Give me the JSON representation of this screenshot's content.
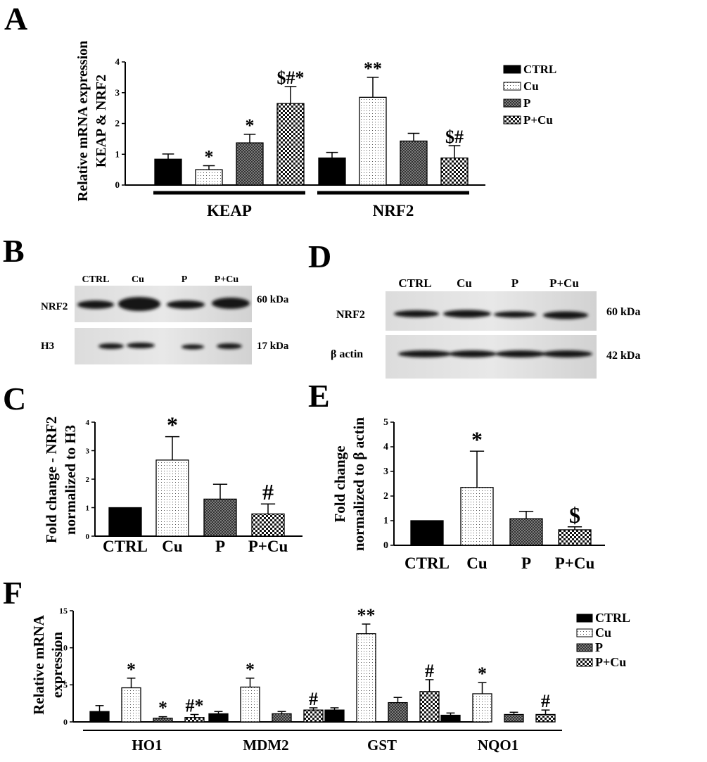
{
  "panels": {
    "A": {
      "label": "A",
      "chart_data": {
        "type": "bar",
        "groups": [
          "KEAP",
          "NRF2"
        ],
        "series": [
          {
            "name": "CTRL",
            "values": [
              0.84,
              0.88
            ],
            "errors": [
              0.17,
              0.18
            ]
          },
          {
            "name": "Cu",
            "values": [
              0.5,
              2.85
            ],
            "errors": [
              0.13,
              0.65
            ]
          },
          {
            "name": "P",
            "values": [
              1.37,
              1.43
            ],
            "errors": [
              0.28,
              0.25
            ]
          },
          {
            "name": "P+Cu",
            "values": [
              2.65,
              0.88
            ],
            "errors": [
              0.55,
              0.4
            ]
          }
        ],
        "annotations": [
          [
            "",
            "*",
            "*",
            "$#*"
          ],
          [
            "",
            "**",
            "",
            "$#"
          ]
        ],
        "ylabel": [
          "Relative mRNA expression",
          "KEAP & NRF2"
        ],
        "ylim": [
          0,
          4
        ],
        "yticks": [
          "0",
          "1",
          "2",
          "3",
          "4"
        ],
        "legend": [
          "CTRL",
          "Cu",
          "P",
          "P+Cu"
        ],
        "legend_position": "right"
      }
    },
    "B": {
      "label": "B",
      "lanes": [
        "CTRL",
        "Cu",
        "P",
        "P+Cu"
      ],
      "rows": [
        {
          "protein": "NRF2",
          "size": "60 kDa"
        },
        {
          "protein": "H3",
          "size": "17 kDa"
        }
      ]
    },
    "C": {
      "label": "C",
      "chart_data": {
        "type": "bar",
        "categories": [
          "CTRL",
          "Cu",
          "P",
          "P+Cu"
        ],
        "values": [
          1.0,
          2.67,
          1.3,
          0.78
        ],
        "errors": [
          0,
          0.82,
          0.52,
          0.35
        ],
        "annotations": [
          "",
          "*",
          "",
          "#"
        ],
        "ylabel": [
          "Fold change - NRF2",
          "normalized to H3"
        ],
        "ylim": [
          0,
          4
        ],
        "yticks": [
          "0",
          "1",
          "2",
          "3",
          "4"
        ]
      }
    },
    "D": {
      "label": "D",
      "lanes": [
        "CTRL",
        "Cu",
        "P",
        "P+Cu"
      ],
      "rows": [
        {
          "protein": "NRF2",
          "size": "60 kDa"
        },
        {
          "protein": "β actin",
          "size": "42 kDa"
        }
      ]
    },
    "E": {
      "label": "E",
      "chart_data": {
        "type": "bar",
        "categories": [
          "CTRL",
          "Cu",
          "P",
          "P+Cu"
        ],
        "values": [
          1.0,
          2.35,
          1.08,
          0.63
        ],
        "errors": [
          0,
          1.47,
          0.3,
          0.12
        ],
        "annotations": [
          "",
          "*",
          "",
          "$"
        ],
        "ylabel": [
          "Fold change",
          "normalized to β actin"
        ],
        "ylim": [
          0,
          5
        ],
        "yticks": [
          "0",
          "1",
          "2",
          "3",
          "4",
          "5"
        ]
      }
    },
    "F": {
      "label": "F",
      "chart_data": {
        "type": "bar",
        "groups": [
          "HO1",
          "MDM2",
          "GST",
          "NQO1"
        ],
        "series": [
          {
            "name": "CTRL",
            "values": [
              1.4,
              1.1,
              1.6,
              0.9
            ],
            "errors": [
              0.8,
              0.3,
              0.3,
              0.3
            ]
          },
          {
            "name": "Cu",
            "values": [
              4.6,
              4.7,
              11.9,
              3.8
            ],
            "errors": [
              1.3,
              1.2,
              1.3,
              1.5
            ]
          },
          {
            "name": "P",
            "values": [
              0.5,
              1.1,
              2.6,
              1.0
            ],
            "errors": [
              0.2,
              0.3,
              0.7,
              0.3
            ]
          },
          {
            "name": "P+Cu",
            "values": [
              0.6,
              1.6,
              4.1,
              1.0
            ],
            "errors": [
              0.4,
              0.3,
              1.6,
              0.6
            ]
          }
        ],
        "annotations": [
          [
            "",
            "*",
            "*",
            "#*"
          ],
          [
            "",
            "*",
            "",
            "#"
          ],
          [
            "",
            "**",
            "",
            "#"
          ],
          [
            "",
            "*",
            "",
            "#"
          ]
        ],
        "ylabel": [
          "Relative mRNA",
          "expression"
        ],
        "ylim": [
          0,
          15
        ],
        "yticks": [
          "0",
          "5",
          "10",
          "15"
        ],
        "legend": [
          "CTRL",
          "Cu",
          "P",
          "P+Cu"
        ],
        "legend_position": "right"
      }
    }
  },
  "colors": {
    "CTRL": "#000000",
    "Cu": "#ffffff",
    "P": "#6a6a6a",
    "P+Cu": "#ffffff",
    "axis": "#000000"
  }
}
